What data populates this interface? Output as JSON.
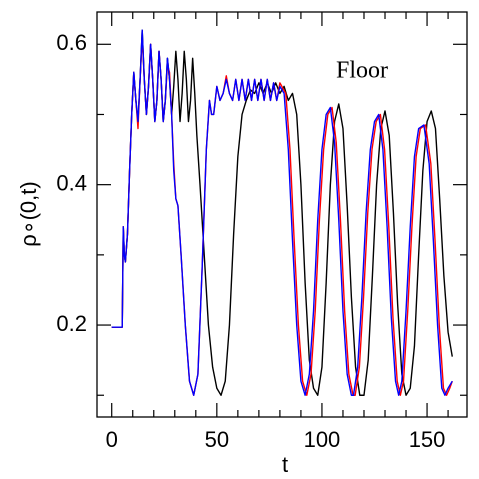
{
  "chart_data": {
    "type": "line",
    "xlabel": "t",
    "ylabel": "ρ∘(0,t)",
    "annotation": "Floor",
    "xlim": [
      -7,
      169
    ],
    "ylim": [
      0.069,
      0.646
    ],
    "xticks": [
      0,
      50,
      100,
      150
    ],
    "xminorticks": [
      10,
      20,
      30,
      40,
      60,
      70,
      80,
      90,
      110,
      120,
      130,
      140,
      160
    ],
    "yticks": [
      0.2,
      0.4,
      0.6
    ],
    "yminorticks": [
      0.1,
      0.3,
      0.5
    ],
    "series": [
      {
        "color": "#000000",
        "x": [
          0,
          5,
          5.5,
          6,
          6.5,
          7.5,
          8.5,
          9.5,
          10.5,
          11.5,
          12.5,
          13.5,
          14.5,
          15.5,
          16.5,
          17.5,
          18.5,
          19.5,
          20.5,
          21.5,
          22.5,
          23.5,
          24.5,
          25.5,
          26.5,
          27.5,
          28.5,
          29.5,
          30.5,
          31.5,
          32.5,
          33.5,
          34.5,
          35.5,
          36.5,
          37.5,
          38.5,
          39.5,
          40.5,
          42,
          44,
          46,
          48,
          50,
          52,
          54,
          56,
          58,
          60,
          62,
          64,
          66,
          68,
          70,
          72,
          74,
          76,
          78,
          80,
          82,
          84,
          86,
          88,
          90,
          92,
          94,
          96,
          98,
          100,
          102,
          104,
          106,
          108,
          110,
          112,
          114,
          116,
          118,
          120,
          122,
          124,
          126,
          128,
          130,
          132,
          134,
          136,
          138,
          140,
          142,
          144,
          146,
          148,
          150,
          152,
          154,
          156,
          158,
          160,
          162
        ],
        "values": [
          0.197,
          0.197,
          0.34,
          0.3,
          0.29,
          0.33,
          0.42,
          0.5,
          0.56,
          0.52,
          0.49,
          0.55,
          0.62,
          0.55,
          0.5,
          0.54,
          0.6,
          0.55,
          0.49,
          0.52,
          0.59,
          0.55,
          0.49,
          0.52,
          0.58,
          0.55,
          0.5,
          0.54,
          0.59,
          0.55,
          0.49,
          0.53,
          0.59,
          0.55,
          0.49,
          0.52,
          0.58,
          0.53,
          0.47,
          0.4,
          0.3,
          0.2,
          0.14,
          0.11,
          0.1,
          0.12,
          0.2,
          0.33,
          0.44,
          0.5,
          0.52,
          0.535,
          0.53,
          0.545,
          0.53,
          0.545,
          0.53,
          0.545,
          0.53,
          0.54,
          0.52,
          0.53,
          0.5,
          0.4,
          0.26,
          0.15,
          0.11,
          0.1,
          0.14,
          0.26,
          0.4,
          0.49,
          0.515,
          0.48,
          0.37,
          0.24,
          0.14,
          0.1,
          0.1,
          0.15,
          0.27,
          0.4,
          0.48,
          0.505,
          0.47,
          0.36,
          0.23,
          0.13,
          0.1,
          0.11,
          0.17,
          0.3,
          0.42,
          0.49,
          0.505,
          0.48,
          0.38,
          0.27,
          0.19,
          0.155
        ]
      },
      {
        "color": "#ff0000",
        "x": [
          0,
          5,
          5.5,
          6,
          6.5,
          7.5,
          8.5,
          9.5,
          10.5,
          11.5,
          12.5,
          13.5,
          14.5,
          15.5,
          16.5,
          17.5,
          18.5,
          19.5,
          20.5,
          21.5,
          22.5,
          23.5,
          24.5,
          25.5,
          26.5,
          27.5,
          28.5,
          29.5,
          30.5,
          31.5,
          33,
          35,
          37,
          39,
          41,
          43,
          45,
          46.5,
          47.5,
          48.5,
          50,
          51.5,
          53,
          54.5,
          56,
          57.5,
          59,
          60.5,
          62,
          63.5,
          65,
          66.5,
          68,
          69.5,
          71,
          72.5,
          74,
          75.5,
          77,
          78.5,
          80,
          82.8,
          84.8,
          86.8,
          88.8,
          90.8,
          92.8,
          94.8,
          96.8,
          98.8,
          100.8,
          102.8,
          104.8,
          106.8,
          108.8,
          110.8,
          112.8,
          114.8,
          115.8,
          117.8,
          119.8,
          121.8,
          123.8,
          125.8,
          127.8,
          129.8,
          131.8,
          133.8,
          135.8,
          137.3,
          138.8,
          140.8,
          142.8,
          144.8,
          146.8,
          149.3,
          151.8,
          153.8,
          155.8,
          157.8,
          159.3,
          160.8,
          162
        ],
        "values": [
          0.197,
          0.197,
          0.34,
          0.3,
          0.29,
          0.33,
          0.42,
          0.5,
          0.56,
          0.52,
          0.48,
          0.55,
          0.61,
          0.55,
          0.5,
          0.54,
          0.6,
          0.55,
          0.49,
          0.52,
          0.59,
          0.55,
          0.49,
          0.52,
          0.57,
          0.56,
          0.5,
          0.43,
          0.38,
          0.37,
          0.3,
          0.2,
          0.12,
          0.1,
          0.13,
          0.28,
          0.45,
          0.52,
          0.5,
          0.5,
          0.54,
          0.52,
          0.53,
          0.555,
          0.53,
          0.52,
          0.55,
          0.52,
          0.55,
          0.52,
          0.55,
          0.52,
          0.55,
          0.52,
          0.55,
          0.52,
          0.55,
          0.52,
          0.545,
          0.52,
          0.545,
          0.53,
          0.45,
          0.32,
          0.2,
          0.12,
          0.1,
          0.13,
          0.22,
          0.35,
          0.45,
          0.5,
          0.51,
          0.46,
          0.35,
          0.22,
          0.13,
          0.1,
          0.1,
          0.14,
          0.24,
          0.36,
          0.45,
          0.49,
          0.5,
          0.45,
          0.34,
          0.21,
          0.12,
          0.1,
          0.12,
          0.22,
          0.34,
          0.44,
          0.48,
          0.485,
          0.43,
          0.32,
          0.2,
          0.11,
          0.1,
          0.11,
          0.12
        ]
      },
      {
        "color": "#0000ff",
        "x": [
          0,
          5,
          5.5,
          6,
          6.5,
          7.5,
          8.5,
          9.5,
          10.5,
          11.5,
          12.5,
          13.5,
          14.5,
          15.5,
          16.5,
          17.5,
          18.5,
          19.5,
          20.5,
          21.5,
          22.5,
          23.5,
          24.5,
          25.5,
          26.5,
          27.5,
          28.5,
          29.5,
          30.5,
          31.5,
          33,
          35,
          37,
          39,
          41,
          43,
          45,
          46.5,
          47.5,
          48.5,
          50,
          51.5,
          53,
          54.5,
          56,
          57.5,
          59,
          60.5,
          62,
          63.5,
          65,
          66.5,
          68,
          69.5,
          71,
          72.5,
          74,
          75.5,
          77,
          78.5,
          80,
          82,
          84,
          86,
          88,
          90,
          92,
          94,
          96,
          98,
          100,
          102,
          104,
          106,
          108,
          110,
          112,
          114,
          115,
          117,
          119,
          121,
          123,
          125,
          127,
          129,
          131,
          133,
          135,
          136.5,
          138,
          140,
          142,
          144,
          146,
          148.5,
          151,
          153,
          155,
          157,
          158.5,
          160,
          162
        ],
        "values": [
          0.197,
          0.197,
          0.34,
          0.3,
          0.29,
          0.33,
          0.42,
          0.5,
          0.56,
          0.52,
          0.49,
          0.55,
          0.62,
          0.55,
          0.5,
          0.54,
          0.6,
          0.55,
          0.49,
          0.52,
          0.59,
          0.55,
          0.49,
          0.52,
          0.58,
          0.55,
          0.5,
          0.42,
          0.38,
          0.37,
          0.3,
          0.2,
          0.12,
          0.1,
          0.13,
          0.28,
          0.45,
          0.52,
          0.5,
          0.5,
          0.54,
          0.52,
          0.53,
          0.55,
          0.53,
          0.52,
          0.55,
          0.52,
          0.55,
          0.52,
          0.55,
          0.52,
          0.55,
          0.52,
          0.55,
          0.52,
          0.55,
          0.52,
          0.545,
          0.52,
          0.54,
          0.53,
          0.45,
          0.32,
          0.2,
          0.12,
          0.1,
          0.13,
          0.22,
          0.35,
          0.45,
          0.5,
          0.51,
          0.46,
          0.35,
          0.22,
          0.13,
          0.1,
          0.1,
          0.14,
          0.24,
          0.36,
          0.45,
          0.49,
          0.5,
          0.45,
          0.34,
          0.21,
          0.12,
          0.1,
          0.12,
          0.22,
          0.34,
          0.44,
          0.48,
          0.485,
          0.43,
          0.32,
          0.2,
          0.11,
          0.1,
          0.11,
          0.12
        ]
      }
    ]
  }
}
